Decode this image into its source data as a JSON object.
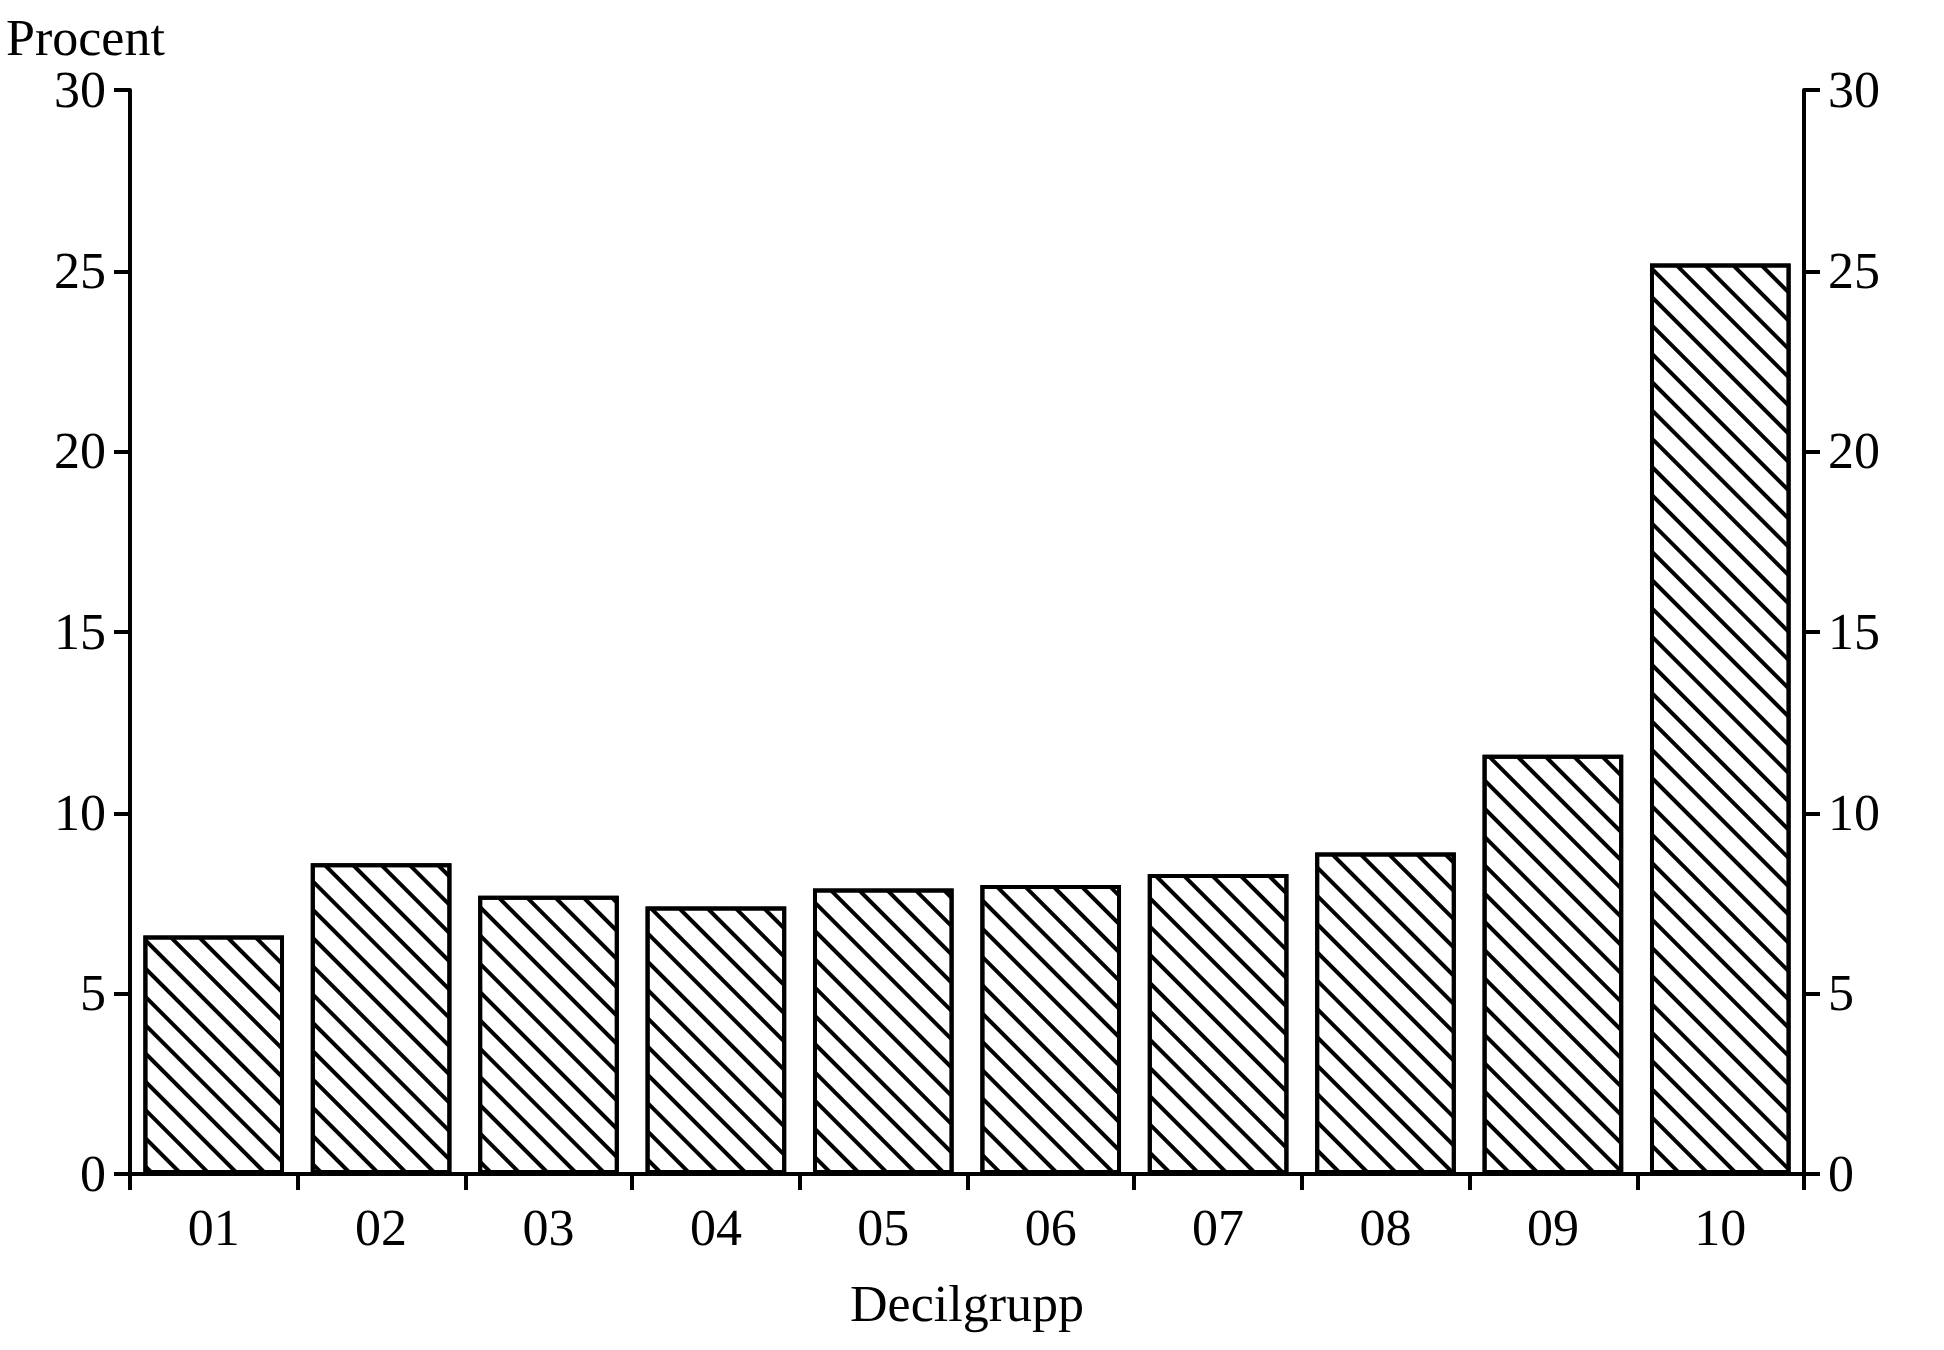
{
  "chart_data": {
    "type": "bar",
    "ylabel": "Procent",
    "xlabel": "Decilgrupp",
    "categories": [
      "01",
      "02",
      "03",
      "04",
      "05",
      "06",
      "07",
      "08",
      "09",
      "10"
    ],
    "values": [
      6.6,
      8.6,
      7.7,
      7.4,
      7.9,
      8.0,
      8.3,
      8.9,
      11.6,
      25.2
    ],
    "ylim": [
      0,
      30
    ],
    "yticks": [
      0,
      5,
      10,
      15,
      20,
      25,
      30
    ],
    "y2lim": [
      0,
      30
    ],
    "y2ticks": [
      0,
      5,
      10,
      15,
      20,
      25,
      30
    ],
    "grid": false
  }
}
